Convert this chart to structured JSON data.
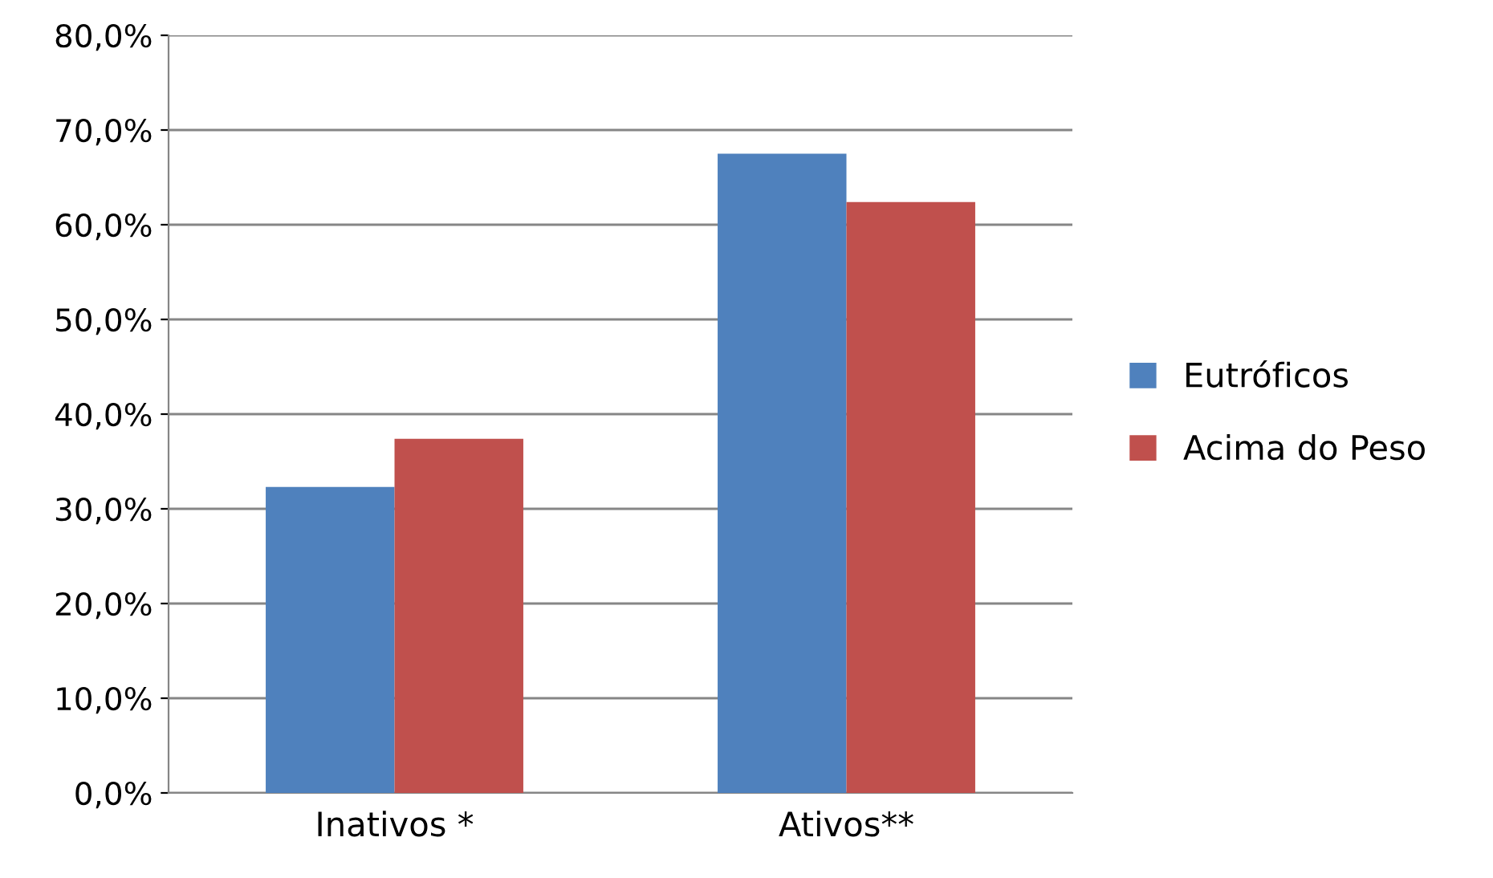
{
  "chart_data": {
    "type": "bar",
    "categories": [
      "Inativos *",
      "Ativos**"
    ],
    "series": [
      {
        "name": "Eutróficos",
        "color": "#4f81bd",
        "values": [
          32.3,
          67.5
        ]
      },
      {
        "name": "Acima do Peso",
        "color": "#c0504d",
        "values": [
          37.4,
          62.4
        ]
      }
    ],
    "ylim": [
      0,
      80
    ],
    "yticks": [
      {
        "value": 0,
        "label": "0,0%"
      },
      {
        "value": 10,
        "label": "10,0%"
      },
      {
        "value": 20,
        "label": "20,0%"
      },
      {
        "value": 30,
        "label": "30,0%"
      },
      {
        "value": 40,
        "label": "40,0%"
      },
      {
        "value": 50,
        "label": "50,0%"
      },
      {
        "value": 60,
        "label": "60,0%"
      },
      {
        "value": 70,
        "label": "70,0%"
      },
      {
        "value": 80,
        "label": "80,0%"
      }
    ],
    "grid": "y",
    "legend": "right"
  }
}
